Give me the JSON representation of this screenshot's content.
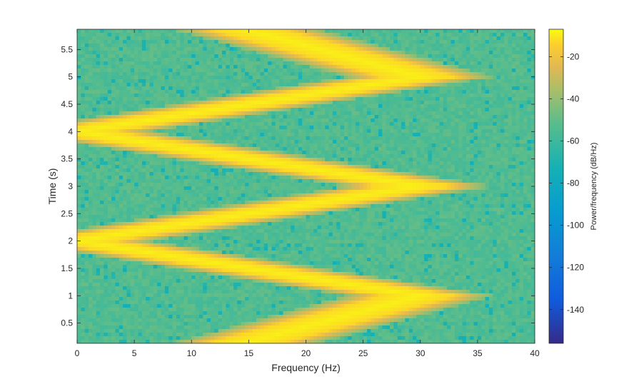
{
  "chart_data": {
    "type": "heatmap",
    "title": "",
    "xlabel": "Frequency (Hz)",
    "ylabel": "Time (s)",
    "colorbar_label": "Power/frequency (dB/Hz)",
    "xlim": [
      0,
      40
    ],
    "ylim": [
      0.13,
      5.87
    ],
    "clim": [
      -156,
      -7
    ],
    "xticks": [
      0,
      5,
      10,
      15,
      20,
      25,
      30,
      35,
      40
    ],
    "xtick_labels": [
      "0",
      "5",
      "10",
      "15",
      "20",
      "25",
      "30",
      "35",
      "40"
    ],
    "yticks": [
      0.5,
      1,
      1.5,
      2,
      2.5,
      3,
      3.5,
      4,
      4.5,
      5,
      5.5
    ],
    "ytick_labels": [
      "0.5",
      "1",
      "1.5",
      "2",
      "2.5",
      "3",
      "3.5",
      "4",
      "4.5",
      "5",
      "5.5"
    ],
    "cticks": [
      -140,
      -120,
      -100,
      -80,
      -60,
      -40,
      -20
    ],
    "ctick_labels": [
      "-140",
      "-120",
      "-100",
      "-80",
      "-60",
      "-40",
      "-20"
    ],
    "colormap": "parula",
    "ridge": {
      "description_points_time_s": [
        0.15,
        1.0,
        2.0,
        3.0,
        4.0,
        5.0,
        5.85
      ],
      "description_points_freq_hz": [
        15,
        30,
        0,
        30,
        0,
        30,
        15
      ],
      "peak_db": -9,
      "background_db": -55
    }
  }
}
